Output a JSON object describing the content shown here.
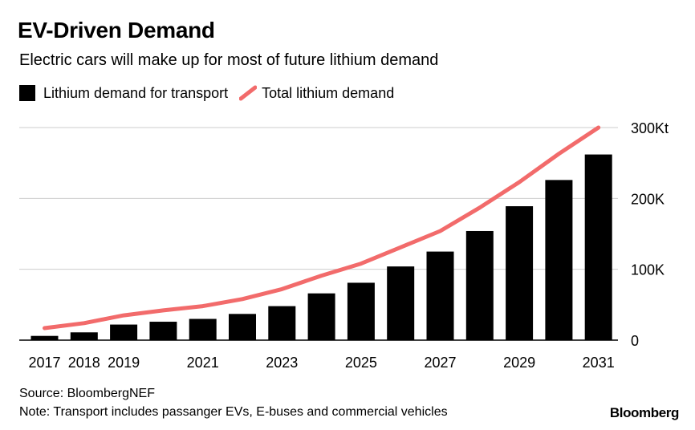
{
  "header": {
    "title": "EV-Driven Demand",
    "subtitle": "Electric cars will make up for most of future lithium demand"
  },
  "footer": {
    "source": "Source: BloombergNEF",
    "note": "Note: Transport includes passanger EVs, E-buses and commercial vehicles",
    "brand": "Bloomberg"
  },
  "colors": {
    "bar": "#000000",
    "line": "#f26b6b",
    "grid": "#cccccc"
  },
  "chart_data": {
    "type": "bar",
    "title": "EV-Driven Demand",
    "subtitle": "Electric cars will make up for most of future lithium demand",
    "categories": [
      "2017",
      "2018",
      "2019",
      "2020",
      "2021",
      "2022",
      "2023",
      "2024",
      "2025",
      "2026",
      "2027",
      "2028",
      "2029",
      "2030",
      "2031"
    ],
    "x_tick_labels": [
      "2017",
      "2018",
      "2019",
      "",
      "2021",
      "",
      "2023",
      "",
      "2025",
      "",
      "2027",
      "",
      "2029",
      "",
      "2031"
    ],
    "series": [
      {
        "name": "Lithium demand for transport",
        "type": "bar",
        "values": [
          6,
          11,
          22,
          26,
          30,
          37,
          48,
          66,
          81,
          104,
          125,
          154,
          189,
          226,
          262
        ]
      },
      {
        "name": "Total lithium demand",
        "type": "line",
        "values": [
          17,
          24,
          35,
          42,
          48,
          58,
          72,
          91,
          108,
          131,
          154,
          187,
          223,
          263,
          300
        ]
      }
    ],
    "xlabel": "",
    "ylabel": "",
    "ylim": [
      0,
      300
    ],
    "y_ticks": [
      {
        "value": 0,
        "label": "0"
      },
      {
        "value": 100,
        "label": "100K"
      },
      {
        "value": 200,
        "label": "200K"
      },
      {
        "value": 300,
        "label": "300Kt"
      }
    ],
    "grid": true,
    "legend_position": "top-left",
    "y_axis_position": "right"
  }
}
